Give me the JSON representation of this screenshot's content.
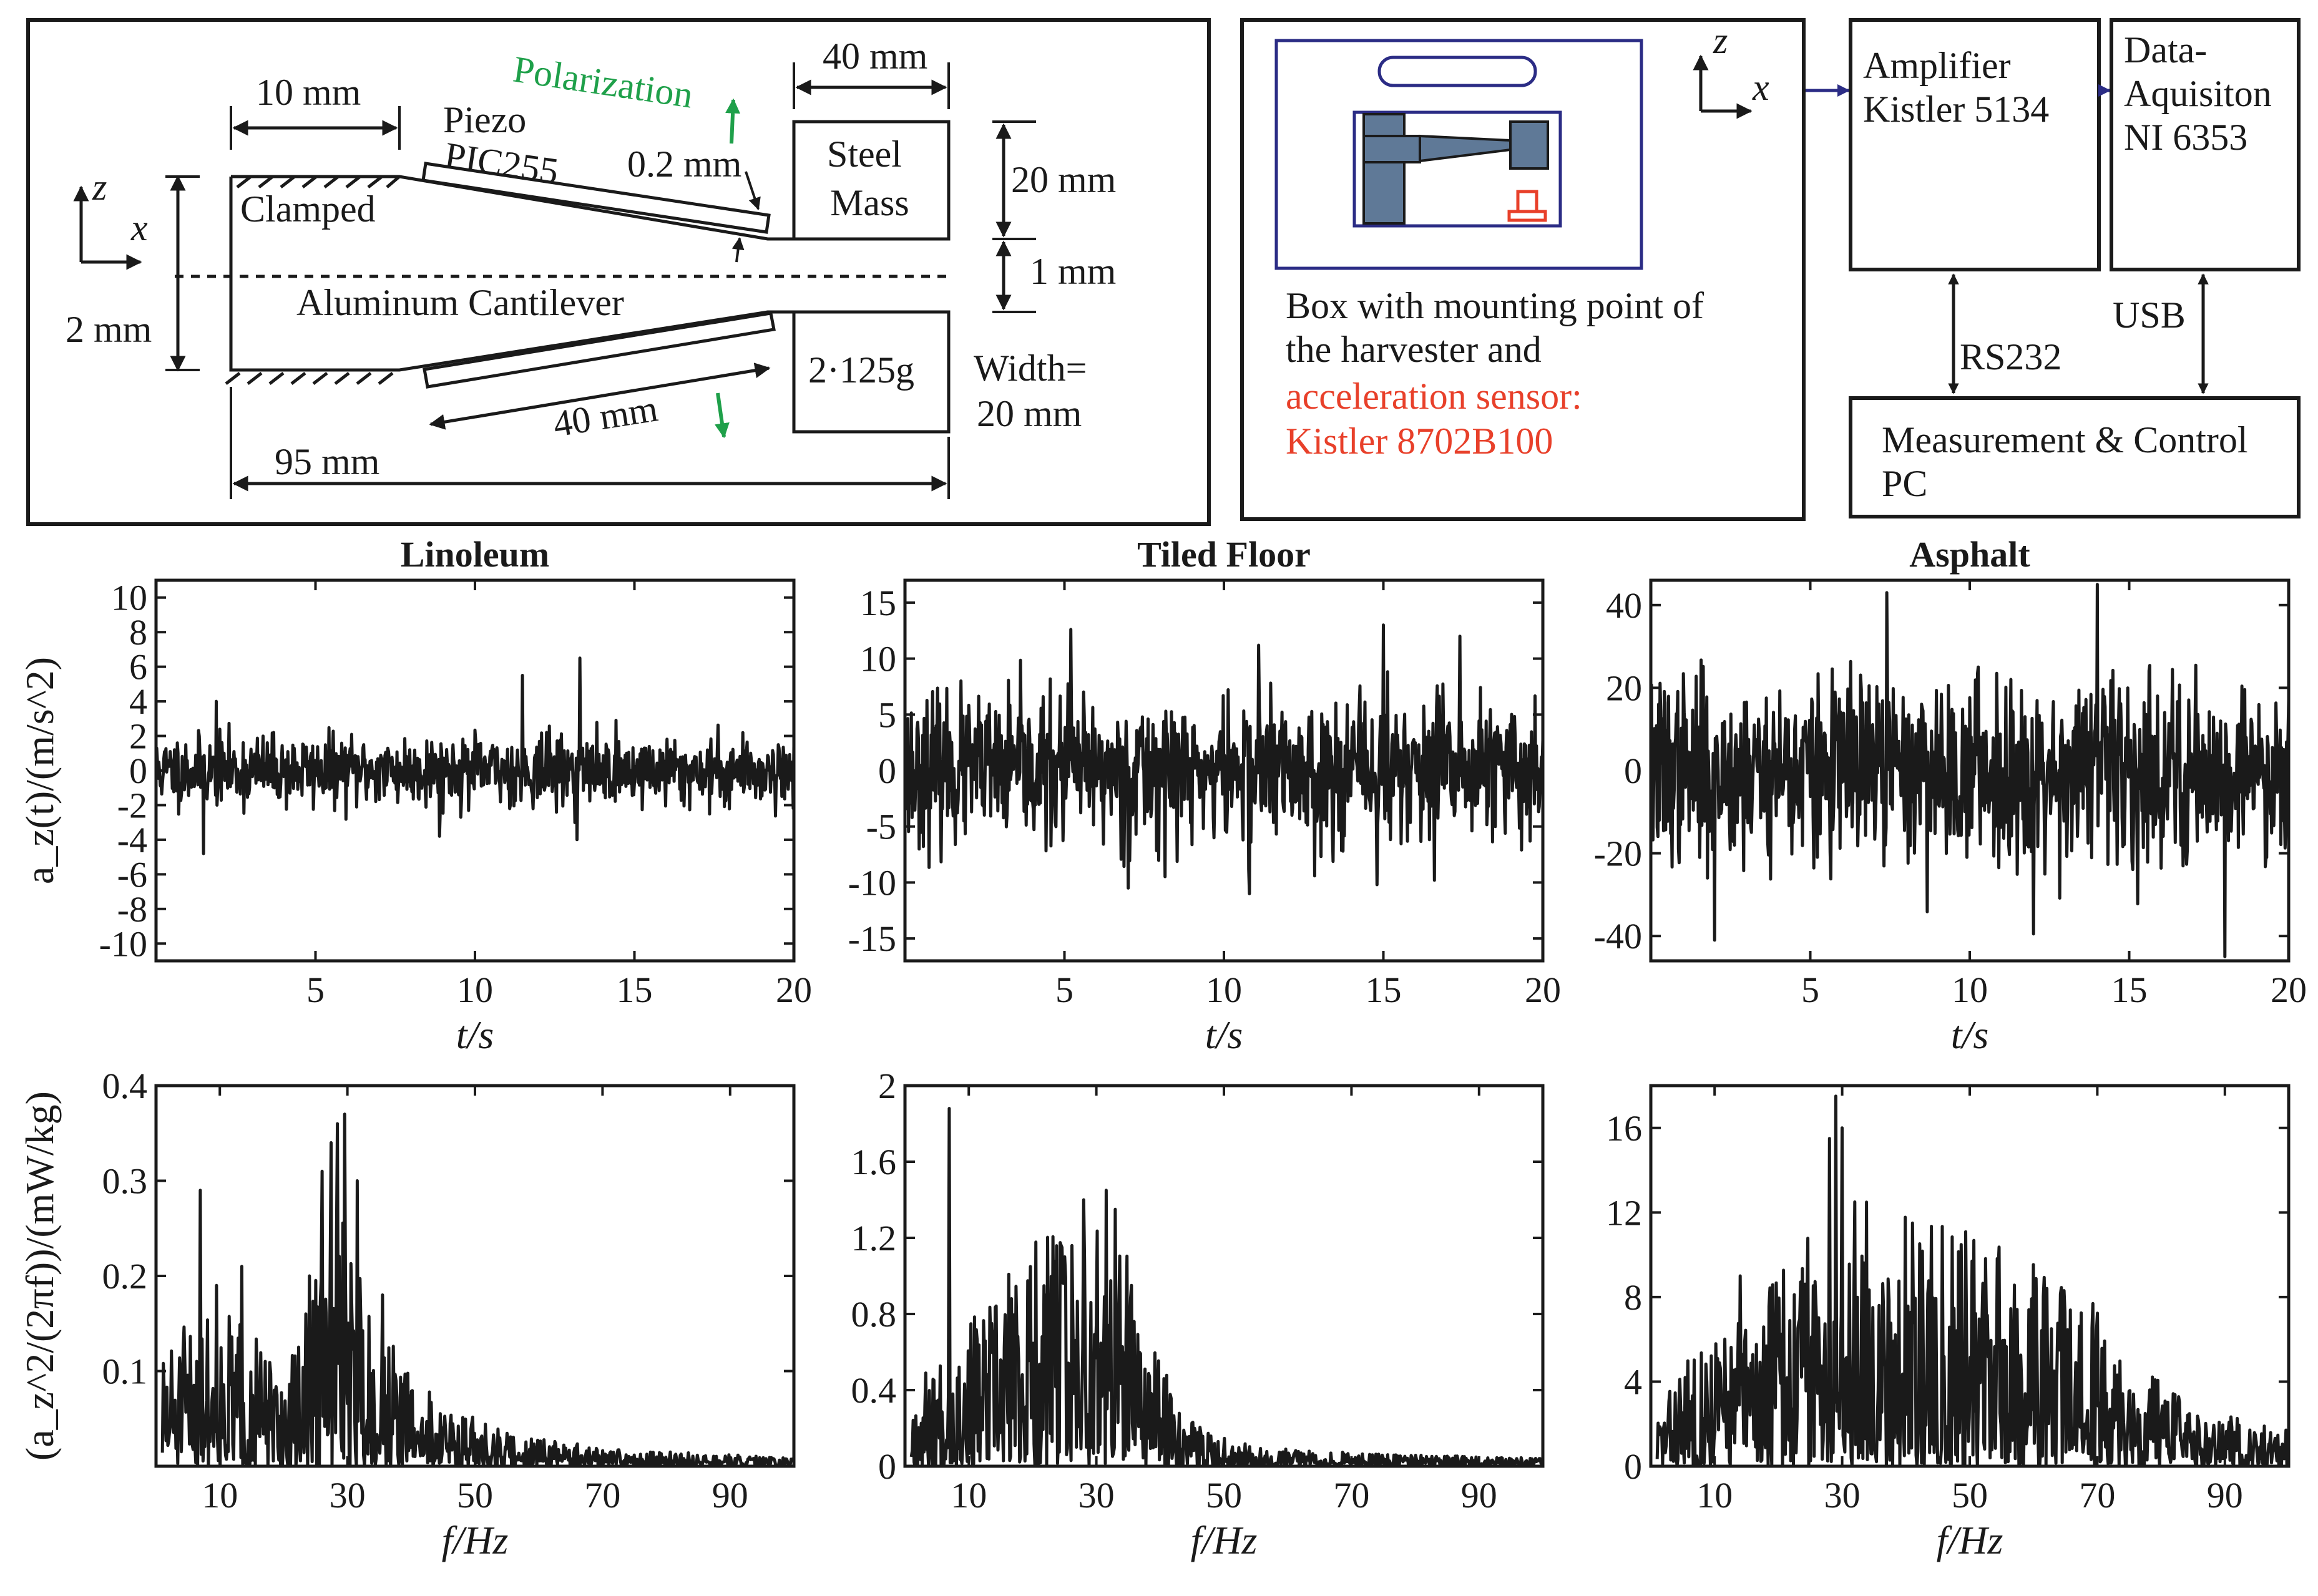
{
  "colors": {
    "ink": "#1a1a1a",
    "accent_green": "#1fa04a",
    "accent_red": "#e8402a",
    "box_blue": "#2b2c85",
    "steel_blue": "#5f7997"
  },
  "schematic": {
    "dim_10mm": "10 mm",
    "piezo": "Piezo",
    "pic255": "PIC255",
    "polarization": "Polarization",
    "dim_02mm": "0.2 mm",
    "dim_40mm_top": "40 mm",
    "steel": "Steel",
    "mass": "Mass",
    "dim_20mm": "20 mm",
    "dim_1mm": "1 mm",
    "clamped": "Clamped",
    "axis_z": "z",
    "axis_x": "x",
    "dim_2mm": "2 mm",
    "aluminum": "Aluminum Cantilever",
    "mass_value": "2·125g",
    "width_line1": "Width=",
    "width_line2": "20 mm",
    "dim_40mm_bottom": "40 mm",
    "dim_95mm": "95 mm"
  },
  "setup": {
    "box_line1": "Box with mounting point of",
    "box_line2": "the harvester and",
    "sensor_line1": "acceleration sensor:",
    "sensor_line2": "Kistler 8702B100",
    "axis_z": "z",
    "axis_x": "x",
    "amp_line1": "Amplifier",
    "amp_line2": "Kistler 5134",
    "daq_line1": "Data-",
    "daq_line2": "Aquisiton",
    "daq_line3": "NI 6353",
    "rs232": "RS232",
    "usb": "USB",
    "pc_line1": "Measurement & Control",
    "pc_line2": "PC"
  },
  "chart_data": [
    {
      "id": "ts-linoleum",
      "type": "line",
      "title": "Linoleum",
      "xlabel": "t/s",
      "ylabel": "a_z(t)/(m/s^2)",
      "xlim": [
        0,
        20
      ],
      "ylim": [
        -11,
        11
      ],
      "xticks": [
        5,
        10,
        15,
        20
      ],
      "yticks": [
        -10,
        -8,
        -6,
        -4,
        -2,
        0,
        2,
        4,
        6,
        8,
        10
      ],
      "ytick_labels": [
        "-10",
        "-8",
        "-6",
        "-4",
        "-2",
        "0",
        "2",
        "4",
        "6",
        "8",
        "10"
      ],
      "signal": {
        "kind": "time",
        "sigma": 1.0,
        "clip": 4.8,
        "seed": 11,
        "n": 900
      },
      "peaks": [
        [
          13.3,
          6.5
        ],
        [
          11.5,
          5.5
        ],
        [
          1.9,
          4.0
        ],
        [
          1.5,
          -4.8
        ],
        [
          8.9,
          -3.8
        ],
        [
          13.2,
          -4.0
        ]
      ]
    },
    {
      "id": "ts-tiled",
      "type": "line",
      "title": "Tiled Floor",
      "xlabel": "t/s",
      "ylabel": "",
      "xlim": [
        0,
        20
      ],
      "ylim": [
        -17,
        17
      ],
      "xticks": [
        5,
        10,
        15,
        20
      ],
      "yticks": [
        -15,
        -10,
        -5,
        0,
        5,
        10,
        15
      ],
      "ytick_labels": [
        "-15",
        "-10",
        "-5",
        "0",
        "5",
        "10",
        "15"
      ],
      "signal": {
        "kind": "time",
        "sigma": 3.2,
        "clip": 13.5,
        "seed": 23,
        "n": 900
      },
      "peaks": [
        [
          5.2,
          12.6
        ],
        [
          15.0,
          13.0
        ],
        [
          17.4,
          12.0
        ],
        [
          11.1,
          11.2
        ],
        [
          7.0,
          -10.5
        ],
        [
          10.8,
          -11.0
        ],
        [
          16.6,
          -9.8
        ],
        [
          14.8,
          -10.2
        ]
      ]
    },
    {
      "id": "ts-asphalt",
      "type": "line",
      "title": "Asphalt",
      "xlabel": "t/s",
      "ylabel": "",
      "xlim": [
        0,
        20
      ],
      "ylim": [
        -46,
        46
      ],
      "xticks": [
        5,
        10,
        15,
        20
      ],
      "yticks": [
        -40,
        -20,
        0,
        20,
        40
      ],
      "ytick_labels": [
        "-40",
        "-20",
        "0",
        "20",
        "40"
      ],
      "signal": {
        "kind": "time",
        "sigma": 11.0,
        "clip": 40.0,
        "seed": 37,
        "n": 900
      },
      "peaks": [
        [
          14.0,
          45.0
        ],
        [
          7.4,
          43.0
        ],
        [
          18.0,
          -45.0
        ],
        [
          12.0,
          -39.5
        ],
        [
          2.0,
          -41.0
        ]
      ]
    },
    {
      "id": "sp-linoleum",
      "type": "line",
      "title": "",
      "xlabel": "f/Hz",
      "ylabel": "(a_z^2/(2πf))/(mW/kg)",
      "xlim": [
        0,
        100
      ],
      "ylim": [
        0,
        0.4
      ],
      "xticks": [
        10,
        30,
        50,
        70,
        90
      ],
      "yticks": [
        0.1,
        0.2,
        0.3,
        0.4
      ],
      "ytick_labels": [
        "0.1",
        "0.2",
        "0.3",
        "0.4"
      ],
      "signal": {
        "kind": "spectrum",
        "envelope": [
          [
            1,
            0.09
          ],
          [
            8,
            0.12
          ],
          [
            14,
            0.11
          ],
          [
            20,
            0.06
          ],
          [
            25,
            0.15
          ],
          [
            30,
            0.19
          ],
          [
            36,
            0.1
          ],
          [
            44,
            0.05
          ],
          [
            55,
            0.025
          ],
          [
            70,
            0.014
          ],
          [
            100,
            0.006
          ]
        ],
        "seed": 51,
        "n": 700
      },
      "peaks": [
        [
          7.0,
          0.29
        ],
        [
          9.5,
          0.19
        ],
        [
          13.5,
          0.21
        ],
        [
          26.0,
          0.31
        ],
        [
          27.5,
          0.34
        ],
        [
          28.5,
          0.36
        ],
        [
          29.5,
          0.37
        ],
        [
          31.5,
          0.3
        ],
        [
          24.0,
          0.2
        ],
        [
          35.5,
          0.18
        ]
      ]
    },
    {
      "id": "sp-tiled",
      "type": "line",
      "title": "",
      "xlabel": "f/Hz",
      "ylabel": "",
      "xlim": [
        0,
        100
      ],
      "ylim": [
        0,
        2
      ],
      "xticks": [
        10,
        30,
        50,
        70,
        90
      ],
      "yticks": [
        0,
        0.4,
        0.8,
        1.2,
        1.6,
        2
      ],
      "ytick_labels": [
        "0",
        "0.4",
        "0.8",
        "1.2",
        "1.6",
        "2"
      ],
      "signal": {
        "kind": "spectrum",
        "envelope": [
          [
            1,
            0.3
          ],
          [
            6,
            0.45
          ],
          [
            12,
            0.6
          ],
          [
            20,
            0.85
          ],
          [
            28,
            0.95
          ],
          [
            34,
            0.85
          ],
          [
            40,
            0.4
          ],
          [
            46,
            0.15
          ],
          [
            55,
            0.08
          ],
          [
            70,
            0.05
          ],
          [
            100,
            0.03
          ]
        ],
        "seed": 67,
        "n": 700
      },
      "peaks": [
        [
          7.0,
          1.88
        ],
        [
          28.0,
          1.4
        ],
        [
          31.5,
          1.45
        ],
        [
          33.0,
          1.35
        ],
        [
          25.0,
          1.1
        ]
      ]
    },
    {
      "id": "sp-asphalt",
      "type": "line",
      "title": "",
      "xlabel": "f/Hz",
      "ylabel": "",
      "xlim": [
        0,
        100
      ],
      "ylim": [
        0,
        18
      ],
      "xticks": [
        10,
        30,
        50,
        70,
        90
      ],
      "yticks": [
        0,
        4,
        8,
        12,
        16
      ],
      "ytick_labels": [
        "0",
        "4",
        "8",
        "12",
        "16"
      ],
      "signal": {
        "kind": "spectrum",
        "envelope": [
          [
            1,
            2.0
          ],
          [
            8,
            4.5
          ],
          [
            15,
            5.5
          ],
          [
            22,
            7.5
          ],
          [
            30,
            9.5
          ],
          [
            40,
            8.5
          ],
          [
            50,
            8.0
          ],
          [
            60,
            7.0
          ],
          [
            68,
            6.0
          ],
          [
            76,
            3.5
          ],
          [
            85,
            2.0
          ],
          [
            100,
            1.2
          ]
        ],
        "seed": 83,
        "n": 700
      },
      "peaks": [
        [
          28.0,
          15.5
        ],
        [
          29.0,
          17.5
        ],
        [
          30.0,
          16.0
        ],
        [
          32.0,
          12.5
        ],
        [
          41.0,
          11.5
        ],
        [
          14.0,
          9.0
        ]
      ]
    }
  ]
}
